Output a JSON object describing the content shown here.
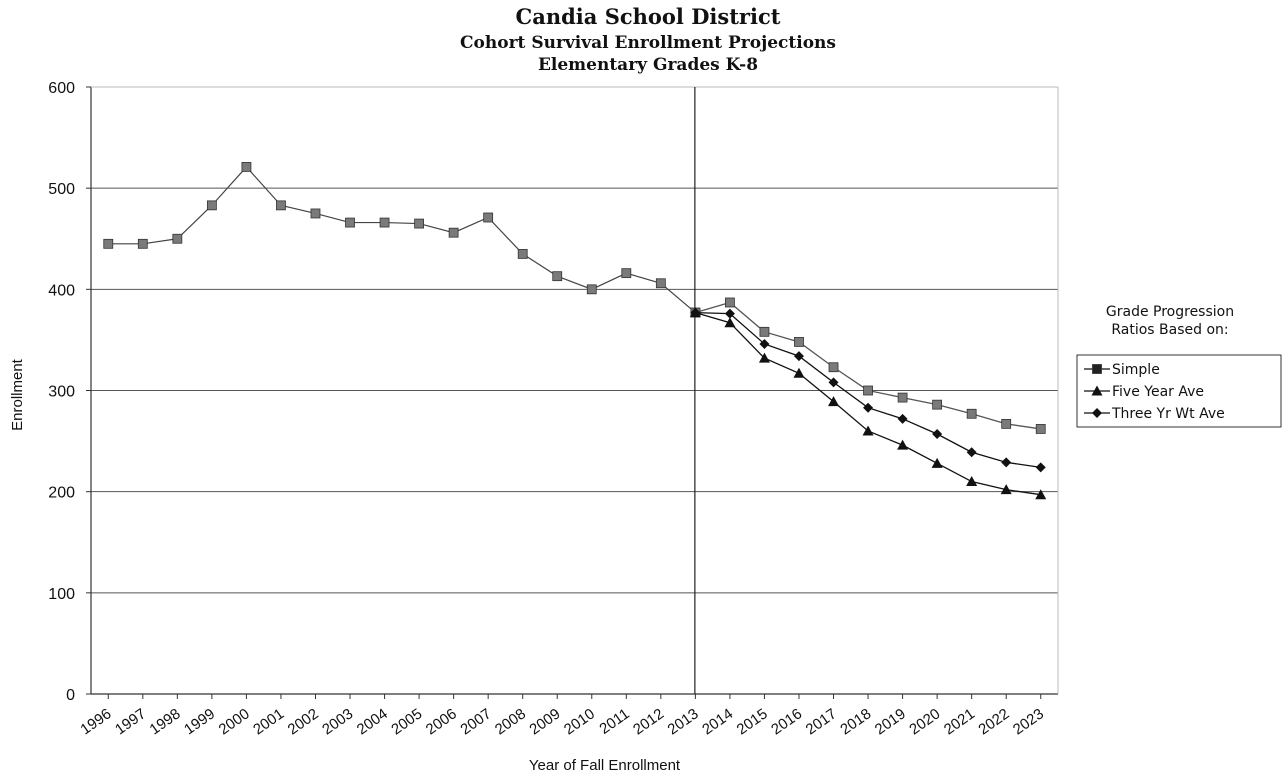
{
  "chart_data": {
    "type": "line",
    "title": "Candia School District",
    "subtitle": [
      "Cohort Survival Enrollment Projections",
      "Elementary Grades K-8"
    ],
    "xlabel": "Year of Fall Enrollment",
    "ylabel": "Enrollment",
    "ylim": [
      0,
      600
    ],
    "yticks": [
      0,
      100,
      200,
      300,
      400,
      500,
      600
    ],
    "grid": true,
    "x": [
      "1996",
      "1997",
      "1998",
      "1999",
      "2000",
      "2001",
      "2002",
      "2003",
      "2004",
      "2005",
      "2006",
      "2007",
      "2008",
      "2009",
      "2010",
      "2011",
      "2012",
      "2013",
      "2014",
      "2015",
      "2016",
      "2017",
      "2018",
      "2019",
      "2020",
      "2021",
      "2022",
      "2023"
    ],
    "divider_at": "2013",
    "historical": {
      "values": [
        445,
        445,
        450,
        483,
        521,
        483,
        475,
        466,
        466,
        465,
        456,
        471,
        435,
        413,
        400,
        416,
        406,
        377
      ]
    },
    "legend": {
      "placement": "right",
      "header": [
        "Grade Progression",
        "Ratios Based on:"
      ]
    },
    "series": [
      {
        "name": "Simple",
        "marker": "square",
        "color": "#7a7a7a",
        "x": [
          "2013",
          "2014",
          "2015",
          "2016",
          "2017",
          "2018",
          "2019",
          "2020",
          "2021",
          "2022",
          "2023"
        ],
        "values": [
          377,
          387,
          358,
          348,
          323,
          300,
          293,
          286,
          277,
          267,
          262
        ]
      },
      {
        "name": "Five Year Ave",
        "marker": "triangle",
        "color": "#111111",
        "x": [
          "2013",
          "2014",
          "2015",
          "2016",
          "2017",
          "2018",
          "2019",
          "2020",
          "2021",
          "2022",
          "2023"
        ],
        "values": [
          377,
          367,
          332,
          317,
          289,
          260,
          246,
          228,
          210,
          202,
          197
        ]
      },
      {
        "name": "Three Yr Wt Ave",
        "marker": "diamond",
        "color": "#111111",
        "x": [
          "2013",
          "2014",
          "2015",
          "2016",
          "2017",
          "2018",
          "2019",
          "2020",
          "2021",
          "2022",
          "2023"
        ],
        "values": [
          377,
          376,
          346,
          334,
          308,
          283,
          272,
          257,
          239,
          229,
          224
        ]
      }
    ]
  }
}
